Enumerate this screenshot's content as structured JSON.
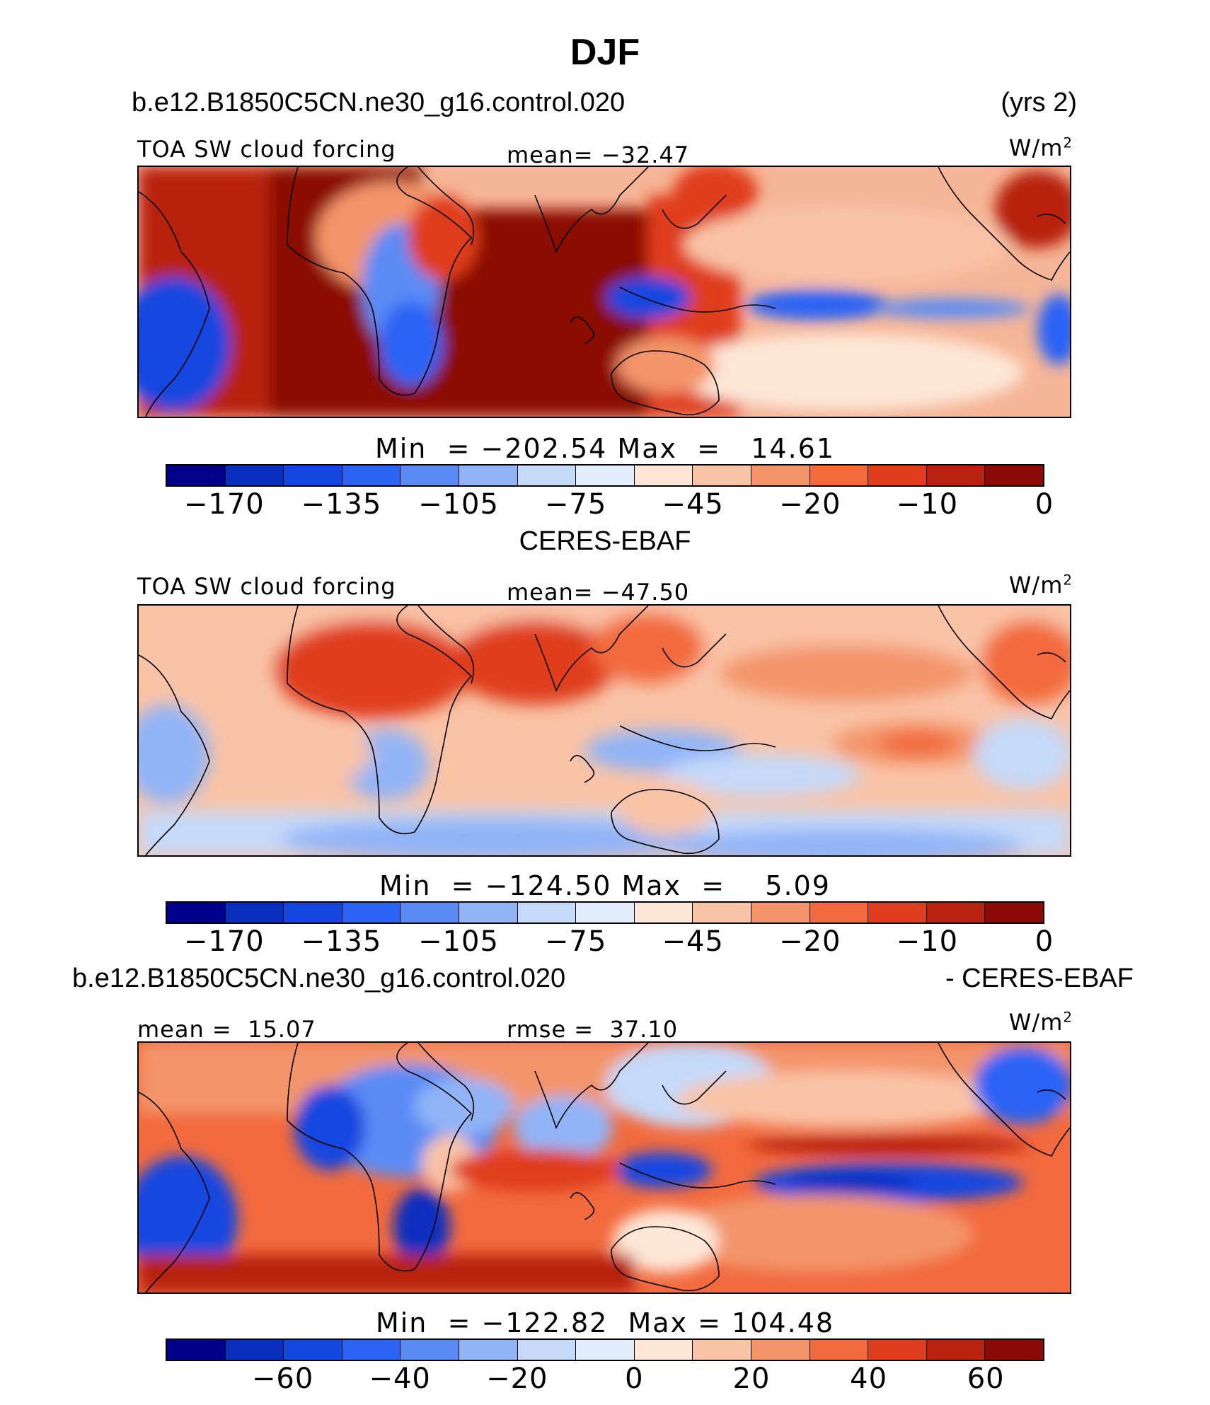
{
  "title": "DJF",
  "model_name": "b.e12.B1850C5CN.ne30_g16.control.020",
  "years": "(yrs 2)",
  "obs_name": "CERES-EBAF",
  "diff_model_name": "b.e12.B1850C5CN.ne30_g16.control.020",
  "diff_obs_label": "- CERES-EBAF",
  "units_base": "W/m",
  "units_exp": "2",
  "chart_data": [
    {
      "type": "heatmap",
      "panel": "model",
      "variable": "TOA SW cloud forcing",
      "mean_label": "mean=",
      "mean_value": "−32.47",
      "min_label": "Min",
      "eq": "=",
      "min_value": "−202.54",
      "max_label": "Max",
      "max_value": "14.61",
      "colorbar_ticks": [
        "−170",
        "−135",
        "−105",
        "−75",
        "−45",
        "−20",
        "−10",
        "0"
      ],
      "colors": [
        "#00008b",
        "#0a2fbf",
        "#1447e0",
        "#2b63f5",
        "#5a8bf5",
        "#91b4f7",
        "#c5d9f9",
        "#e3eefc",
        "#fde6d6",
        "#f9c3a6",
        "#f3946b",
        "#f26a3e",
        "#e03d1e",
        "#b8220f",
        "#8b0a05"
      ]
    },
    {
      "type": "heatmap",
      "panel": "obs",
      "variable": "TOA SW cloud forcing",
      "mean_label": "mean=",
      "mean_value": "−47.50",
      "min_label": "Min",
      "eq": "=",
      "min_value": "−124.50",
      "max_label": "Max",
      "max_value": "5.09",
      "colorbar_ticks": [
        "−170",
        "−135",
        "−105",
        "−75",
        "−45",
        "−20",
        "−10",
        "0"
      ],
      "colors": [
        "#00008b",
        "#0a2fbf",
        "#1447e0",
        "#2b63f5",
        "#5a8bf5",
        "#91b4f7",
        "#c5d9f9",
        "#e3eefc",
        "#fde6d6",
        "#f9c3a6",
        "#f3946b",
        "#f26a3e",
        "#e03d1e",
        "#b8220f",
        "#8b0a05"
      ]
    },
    {
      "type": "heatmap",
      "panel": "difference",
      "mean_label": "mean =",
      "mean_value": "15.07",
      "rmse_label": "rmse =",
      "rmse_value": "37.10",
      "min_label": "Min",
      "eq": "=",
      "min_value": "−122.82",
      "max_label": "Max",
      "max_value": "104.48",
      "colorbar_ticks": [
        "−60",
        "−40",
        "−20",
        "0",
        "20",
        "40",
        "60"
      ],
      "colors": [
        "#00008b",
        "#0a2fbf",
        "#1447e0",
        "#2b63f5",
        "#5a8bf5",
        "#91b4f7",
        "#c5d9f9",
        "#e3eefc",
        "#fde6d6",
        "#f9c3a6",
        "#f3946b",
        "#f26a3e",
        "#e03d1e",
        "#b8220f",
        "#8b0a05"
      ]
    }
  ]
}
